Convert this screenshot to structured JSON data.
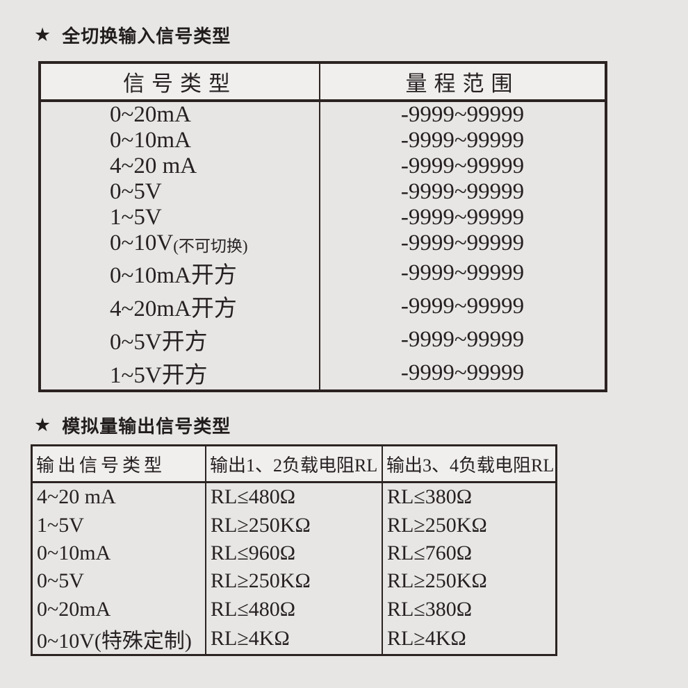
{
  "colors": {
    "page_bg": "#e7e6e4",
    "table_border": "#2b2322",
    "header_row_bg": "#f0efed",
    "text": "#262022"
  },
  "section1": {
    "star": "★",
    "title": "全切换输入信号类型",
    "table": {
      "headers": [
        "信号类型",
        "量程范围"
      ],
      "rows": [
        {
          "type": "0~20mA",
          "note": "",
          "range": "-9999~99999"
        },
        {
          "type": "0~10mA",
          "note": "",
          "range": "-9999~99999"
        },
        {
          "type": "4~20 mA",
          "note": "",
          "range": "-9999~99999"
        },
        {
          "type": "0~5V",
          "note": "",
          "range": "-9999~99999"
        },
        {
          "type": "1~5V",
          "note": "",
          "range": "-9999~99999"
        },
        {
          "type": "0~10V",
          "note": "(不可切换)",
          "range": "-9999~99999"
        },
        {
          "type": "0~10mA开方",
          "note": "",
          "range": "-9999~99999"
        },
        {
          "type": "4~20mA开方",
          "note": "",
          "range": "-9999~99999"
        },
        {
          "type": "0~5V开方",
          "note": "",
          "range": "-9999~99999"
        },
        {
          "type": "1~5V开方",
          "note": "",
          "range": "-9999~99999"
        }
      ]
    }
  },
  "section2": {
    "star": "★",
    "title": "模拟量输出信号类型",
    "table": {
      "headers": [
        "输出信号类型",
        "输出1、2负载电阻RL",
        "输出3、4负载电阻RL"
      ],
      "rows": [
        {
          "type": "4~20 mA",
          "rl12": "RL≤480Ω",
          "rl34": "RL≤380Ω"
        },
        {
          "type": "1~5V",
          "rl12": "RL≥250KΩ",
          "rl34": "RL≥250KΩ"
        },
        {
          "type": "0~10mA",
          "rl12": "RL≤960Ω",
          "rl34": "RL≤760Ω"
        },
        {
          "type": "0~5V",
          "rl12": "RL≥250KΩ",
          "rl34": "RL≥250KΩ"
        },
        {
          "type": "0~20mA",
          "rl12": "RL≤480Ω",
          "rl34": "RL≤380Ω"
        },
        {
          "type": "0~10V(特殊定制)",
          "rl12": "RL≥4KΩ",
          "rl34": "RL≥4KΩ"
        }
      ]
    }
  }
}
